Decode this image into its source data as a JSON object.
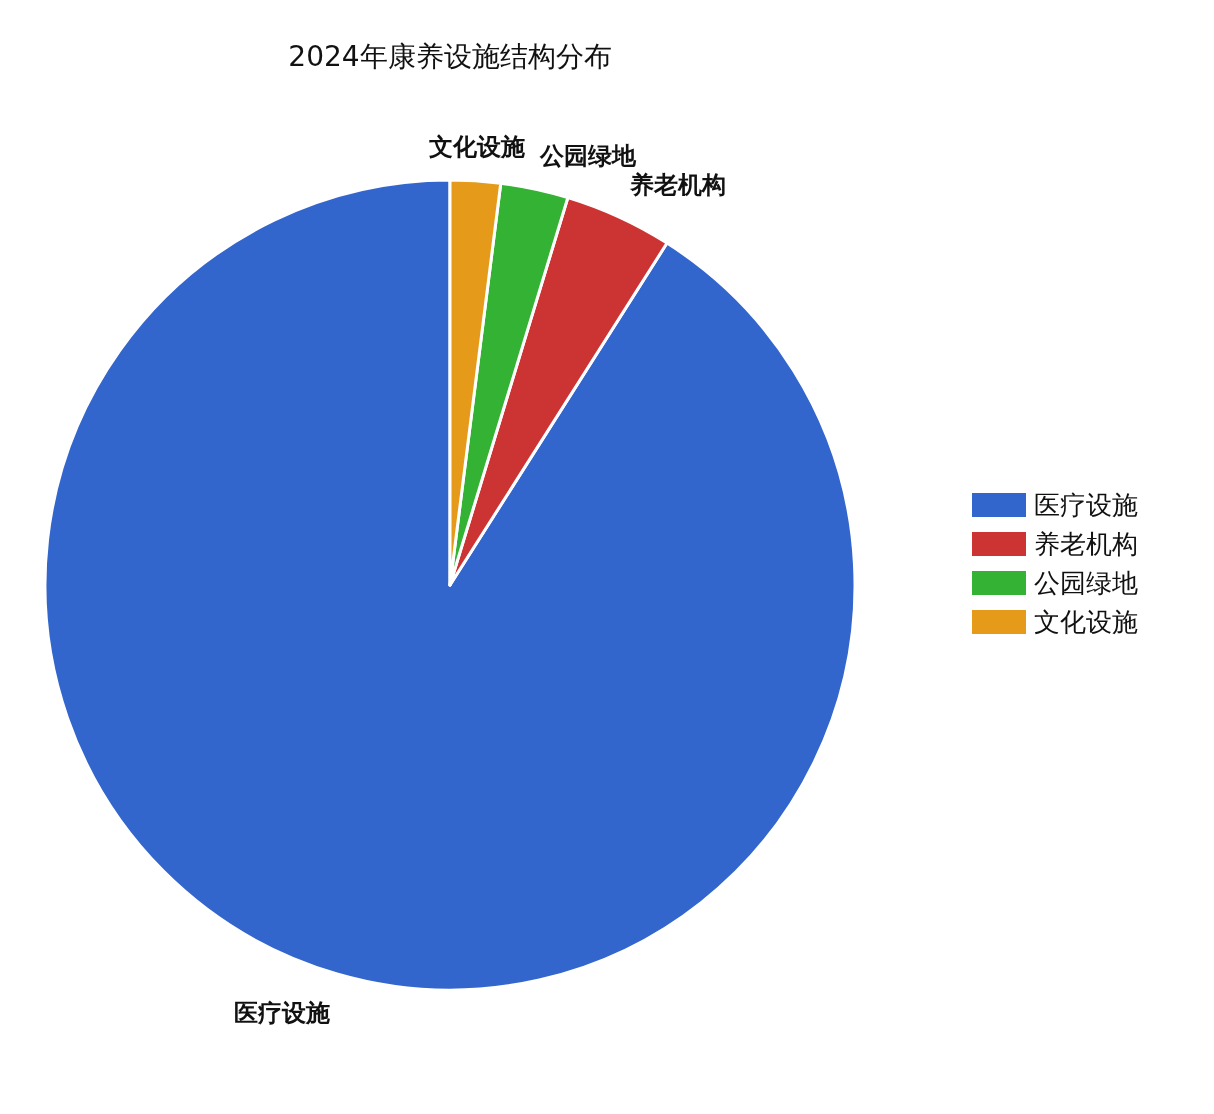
{
  "chart_data": {
    "type": "pie",
    "title": "2024年康养设施结构分布",
    "categories": [
      "医疗设施",
      "养老机构",
      "公园绿地",
      "文化设施"
    ],
    "values": [
      91.0,
      4.3,
      2.7,
      2.0
    ],
    "colors": [
      "#3366cc",
      "#cc3333",
      "#33b233",
      "#e69a1a"
    ],
    "legend": "right"
  }
}
